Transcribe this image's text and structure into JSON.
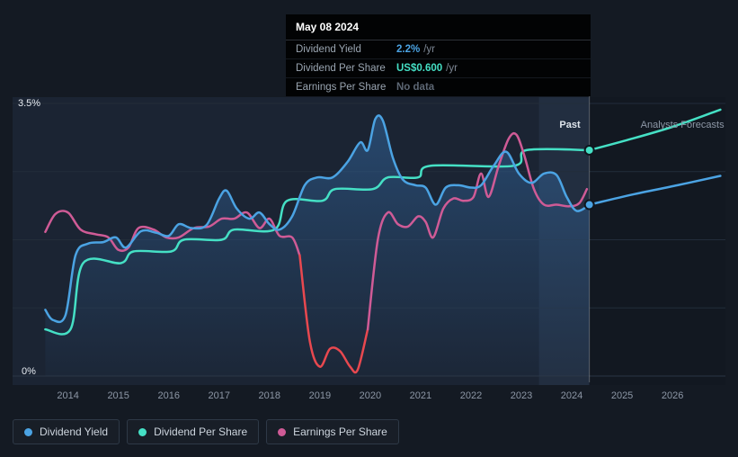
{
  "tooltip": {
    "date": "May 08 2024",
    "rows": [
      {
        "label": "Dividend Yield",
        "value": "2.2%",
        "suffix": "/yr",
        "color": "#4ba3e3"
      },
      {
        "label": "Dividend Per Share",
        "value": "US$0.600",
        "suffix": "/yr",
        "color": "#45e0c5"
      },
      {
        "label": "Earnings Per Share",
        "value": "No data",
        "suffix": "",
        "color": "#5d6774"
      }
    ]
  },
  "legend": {
    "items": [
      {
        "label": "Dividend Yield",
        "color": "#4ba3e3"
      },
      {
        "label": "Dividend Per Share",
        "color": "#45e0c5"
      },
      {
        "label": "Earnings Per Share",
        "color": "#cf5b96"
      }
    ]
  },
  "chart_data": {
    "type": "line",
    "ylim": [
      0,
      3.5
    ],
    "y_axis_labels": {
      "top": "3.5%",
      "bottom": "0%"
    },
    "gridline_values": [
      0,
      0.875,
      1.75,
      2.625,
      3.5
    ],
    "x_ticks": [
      {
        "label": "2014",
        "year": 2014
      },
      {
        "label": "2015",
        "year": 2015
      },
      {
        "label": "2016",
        "year": 2016
      },
      {
        "label": "2017",
        "year": 2017
      },
      {
        "label": "2018",
        "year": 2018
      },
      {
        "label": "2019",
        "year": 2019
      },
      {
        "label": "2020",
        "year": 2020
      },
      {
        "label": "2021",
        "year": 2021
      },
      {
        "label": "2022",
        "year": 2022
      },
      {
        "label": "2023",
        "year": 2023
      },
      {
        "label": "2024",
        "year": 2024
      },
      {
        "label": "2025",
        "year": 2025
      },
      {
        "label": "2026",
        "year": 2026
      }
    ],
    "divider_year": 2024.35,
    "past_band_start": 2023.35,
    "past_label": "Past",
    "forecast_label": "Analysts Forecasts",
    "series": [
      {
        "name": "Dividend Yield",
        "color": "#4ba3e3",
        "area": true,
        "end_dot": true,
        "past": [
          [
            2013.55,
            0.85
          ],
          [
            2013.7,
            0.72
          ],
          [
            2013.95,
            0.78
          ],
          [
            2014.15,
            1.55
          ],
          [
            2014.4,
            1.7
          ],
          [
            2014.7,
            1.72
          ],
          [
            2014.95,
            1.78
          ],
          [
            2015.15,
            1.65
          ],
          [
            2015.45,
            1.86
          ],
          [
            2015.75,
            1.84
          ],
          [
            2016.0,
            1.8
          ],
          [
            2016.2,
            1.95
          ],
          [
            2016.45,
            1.9
          ],
          [
            2016.75,
            1.94
          ],
          [
            2017.0,
            2.28
          ],
          [
            2017.15,
            2.38
          ],
          [
            2017.35,
            2.15
          ],
          [
            2017.6,
            2.02
          ],
          [
            2017.8,
            2.1
          ],
          [
            2018.0,
            1.95
          ],
          [
            2018.2,
            1.88
          ],
          [
            2018.45,
            2.05
          ],
          [
            2018.7,
            2.45
          ],
          [
            2018.95,
            2.55
          ],
          [
            2019.25,
            2.55
          ],
          [
            2019.55,
            2.75
          ],
          [
            2019.8,
            3.0
          ],
          [
            2019.95,
            2.9
          ],
          [
            2020.1,
            3.3
          ],
          [
            2020.25,
            3.28
          ],
          [
            2020.45,
            2.8
          ],
          [
            2020.65,
            2.52
          ],
          [
            2020.9,
            2.45
          ],
          [
            2021.1,
            2.42
          ],
          [
            2021.3,
            2.2
          ],
          [
            2021.5,
            2.42
          ],
          [
            2021.75,
            2.45
          ],
          [
            2022.0,
            2.42
          ],
          [
            2022.2,
            2.45
          ],
          [
            2022.45,
            2.7
          ],
          [
            2022.7,
            2.88
          ],
          [
            2022.95,
            2.6
          ],
          [
            2023.2,
            2.48
          ],
          [
            2023.45,
            2.6
          ],
          [
            2023.7,
            2.58
          ],
          [
            2023.9,
            2.3
          ],
          [
            2024.1,
            2.12
          ],
          [
            2024.35,
            2.2
          ]
        ],
        "forecast": [
          [
            2024.35,
            2.2
          ],
          [
            2025.2,
            2.33
          ],
          [
            2026.1,
            2.45
          ],
          [
            2026.95,
            2.57
          ]
        ]
      },
      {
        "name": "Dividend Per Share",
        "color": "#45e0c5",
        "end_dot": true,
        "past": [
          [
            2013.55,
            0.6
          ],
          [
            2014.05,
            0.6
          ],
          [
            2014.3,
            1.45
          ],
          [
            2015.05,
            1.45
          ],
          [
            2015.3,
            1.6
          ],
          [
            2016.05,
            1.6
          ],
          [
            2016.3,
            1.75
          ],
          [
            2017.05,
            1.75
          ],
          [
            2017.3,
            1.88
          ],
          [
            2018.1,
            1.88
          ],
          [
            2018.35,
            2.25
          ],
          [
            2019.05,
            2.25
          ],
          [
            2019.3,
            2.4
          ],
          [
            2020.05,
            2.4
          ],
          [
            2020.35,
            2.55
          ],
          [
            2020.95,
            2.55
          ],
          [
            2021.2,
            2.7
          ],
          [
            2022.85,
            2.7
          ],
          [
            2023.1,
            2.9
          ],
          [
            2024.35,
            2.9
          ]
        ],
        "forecast": [
          [
            2024.35,
            2.9
          ],
          [
            2025.1,
            3.03
          ],
          [
            2026.0,
            3.2
          ],
          [
            2026.95,
            3.42
          ]
        ]
      },
      {
        "name": "Earnings Per Share",
        "color": "#cf5b96",
        "loss_color": "#e8484f",
        "loss_range": [
          2018.6,
          2019.95
        ],
        "past": [
          [
            2013.55,
            1.85
          ],
          [
            2013.75,
            2.08
          ],
          [
            2014.0,
            2.1
          ],
          [
            2014.25,
            1.88
          ],
          [
            2014.55,
            1.82
          ],
          [
            2014.8,
            1.78
          ],
          [
            2015.0,
            1.62
          ],
          [
            2015.2,
            1.65
          ],
          [
            2015.4,
            1.9
          ],
          [
            2015.7,
            1.88
          ],
          [
            2015.95,
            1.78
          ],
          [
            2016.2,
            1.78
          ],
          [
            2016.5,
            1.9
          ],
          [
            2016.8,
            1.92
          ],
          [
            2017.05,
            2.02
          ],
          [
            2017.3,
            2.02
          ],
          [
            2017.55,
            2.1
          ],
          [
            2017.8,
            1.9
          ],
          [
            2018.0,
            2.02
          ],
          [
            2018.2,
            1.8
          ],
          [
            2018.45,
            1.78
          ],
          [
            2018.6,
            1.55
          ],
          [
            2018.8,
            0.45
          ],
          [
            2019.0,
            0.12
          ],
          [
            2019.2,
            0.35
          ],
          [
            2019.4,
            0.32
          ],
          [
            2019.6,
            0.12
          ],
          [
            2019.75,
            0.08
          ],
          [
            2019.95,
            0.6
          ],
          [
            2020.15,
            1.75
          ],
          [
            2020.35,
            2.1
          ],
          [
            2020.55,
            1.95
          ],
          [
            2020.75,
            1.92
          ],
          [
            2020.95,
            2.05
          ],
          [
            2021.1,
            1.98
          ],
          [
            2021.25,
            1.78
          ],
          [
            2021.45,
            2.15
          ],
          [
            2021.65,
            2.28
          ],
          [
            2021.85,
            2.25
          ],
          [
            2022.05,
            2.3
          ],
          [
            2022.2,
            2.6
          ],
          [
            2022.35,
            2.3
          ],
          [
            2022.55,
            2.7
          ],
          [
            2022.75,
            3.05
          ],
          [
            2022.9,
            3.1
          ],
          [
            2023.05,
            2.85
          ],
          [
            2023.25,
            2.4
          ],
          [
            2023.45,
            2.2
          ],
          [
            2023.7,
            2.2
          ],
          [
            2023.95,
            2.18
          ],
          [
            2024.15,
            2.22
          ],
          [
            2024.3,
            2.4
          ]
        ]
      }
    ]
  },
  "colors": {
    "background": "#141a23",
    "past_bg": "#1b2433",
    "forecast_bg": "#121821",
    "past_band": "rgba(125,160,215,0.08)",
    "gridline": "#232d3a",
    "baseline": "#2b3645",
    "divider": "rgba(255,255,255,0.28)",
    "tick_text": "#8d97a6",
    "axis_text": "#e8edf3",
    "forecast_text": "#8d97a6",
    "area_top": "rgba(58,126,197,0.40)",
    "area_bottom": "rgba(58,126,197,0.03)"
  }
}
